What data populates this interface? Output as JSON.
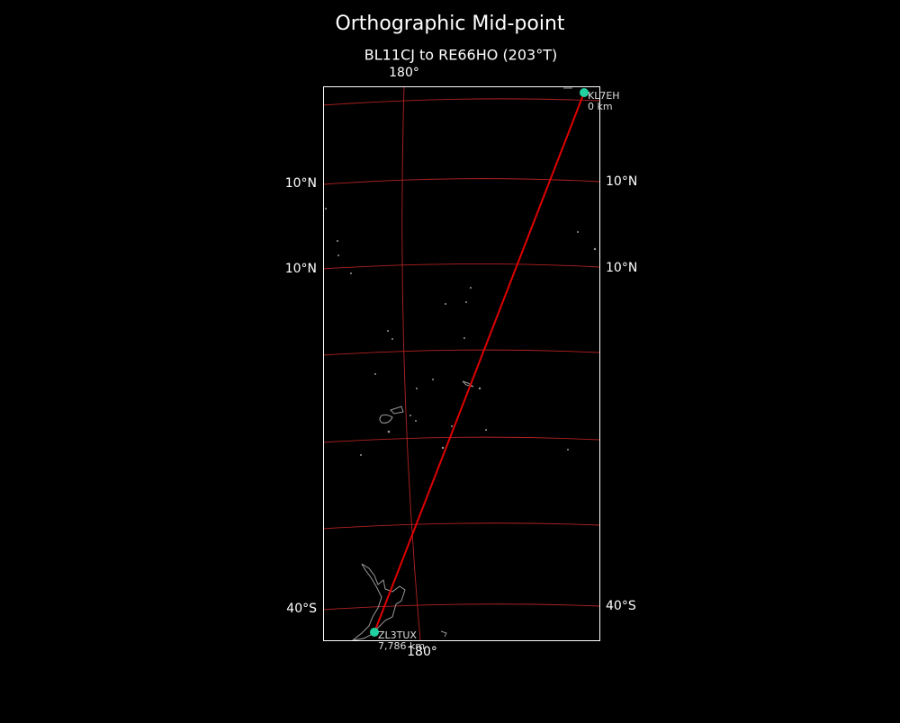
{
  "title": "Orthographic Mid-point",
  "subtitle": "BL11CJ to RE66HO (203°T)",
  "meridian_labels": {
    "top": "180°",
    "bottom": "180°"
  },
  "parallel_labels": {
    "left": [
      "10°N",
      "10°N",
      "40°S"
    ],
    "right": [
      "10°N",
      "10°N",
      "40°S"
    ]
  },
  "stations": [
    {
      "call": "KL7EH",
      "distance": "0 km"
    },
    {
      "call": "ZL3TUX",
      "distance": "7,786 km"
    }
  ]
}
